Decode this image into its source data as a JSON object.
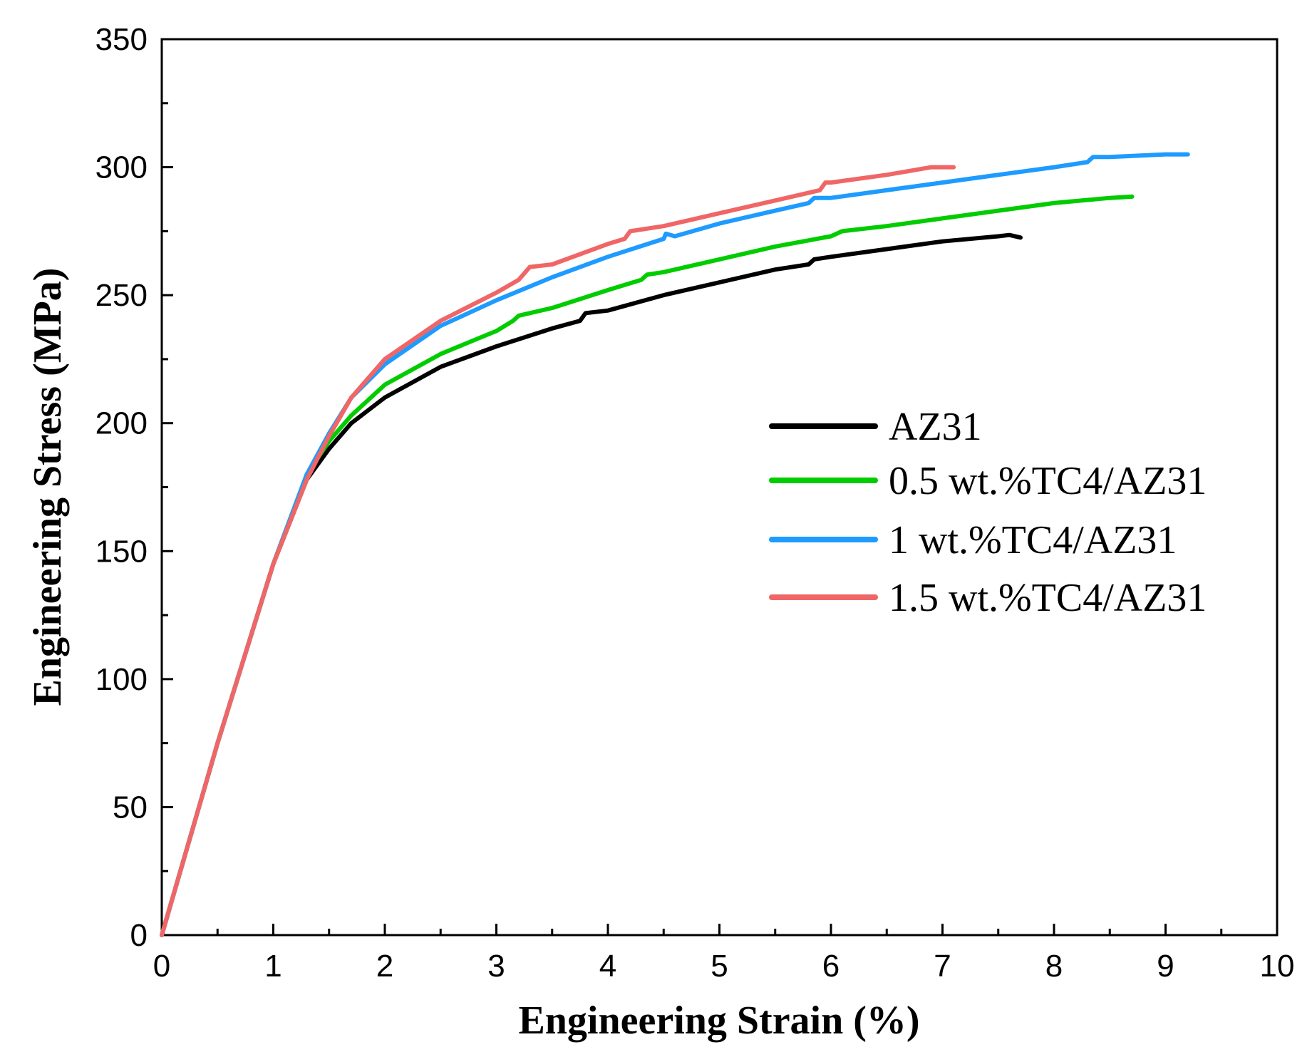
{
  "chart_data": {
    "type": "line",
    "title": "",
    "xlabel": "Engineering Strain (%)",
    "ylabel": "Engineering Stress (MPa)",
    "xlim": [
      0,
      10
    ],
    "ylim": [
      0,
      350
    ],
    "xticks": [
      0,
      1,
      2,
      3,
      4,
      5,
      6,
      7,
      8,
      9,
      10
    ],
    "yticks": [
      0,
      50,
      100,
      150,
      200,
      250,
      300,
      350
    ],
    "grid": false,
    "legend_position": "center-right",
    "series": [
      {
        "name": "AZ31",
        "color": "#000000",
        "points": [
          [
            0,
            0
          ],
          [
            0.5,
            75
          ],
          [
            1.0,
            145
          ],
          [
            1.3,
            178
          ],
          [
            1.5,
            190
          ],
          [
            1.7,
            200
          ],
          [
            2.0,
            210
          ],
          [
            2.5,
            222
          ],
          [
            3.0,
            230
          ],
          [
            3.5,
            237
          ],
          [
            3.75,
            240
          ],
          [
            3.8,
            243
          ],
          [
            4.0,
            244
          ],
          [
            4.5,
            250
          ],
          [
            5.0,
            255
          ],
          [
            5.5,
            260
          ],
          [
            5.8,
            262
          ],
          [
            5.85,
            264
          ],
          [
            6.0,
            265
          ],
          [
            6.5,
            268
          ],
          [
            7.0,
            271
          ],
          [
            7.5,
            273
          ],
          [
            7.6,
            273.5
          ],
          [
            7.7,
            272.5
          ]
        ]
      },
      {
        "name": "0.5 wt.%TC4/AZ31",
        "color": "#00cc00",
        "points": [
          [
            0,
            0
          ],
          [
            0.5,
            75
          ],
          [
            1.0,
            145
          ],
          [
            1.3,
            180
          ],
          [
            1.5,
            193
          ],
          [
            1.7,
            203
          ],
          [
            2.0,
            215
          ],
          [
            2.5,
            227
          ],
          [
            3.0,
            236
          ],
          [
            3.15,
            240
          ],
          [
            3.2,
            242
          ],
          [
            3.5,
            245
          ],
          [
            4.0,
            252
          ],
          [
            4.3,
            256
          ],
          [
            4.35,
            258
          ],
          [
            4.5,
            259
          ],
          [
            5.0,
            264
          ],
          [
            5.5,
            269
          ],
          [
            6.0,
            273
          ],
          [
            6.1,
            275
          ],
          [
            6.5,
            277
          ],
          [
            7.0,
            280
          ],
          [
            7.5,
            283
          ],
          [
            8.0,
            286
          ],
          [
            8.5,
            288
          ],
          [
            8.7,
            288.5
          ]
        ]
      },
      {
        "name": "1 wt.%TC4/AZ31",
        "color": "#1e9bff",
        "points": [
          [
            0,
            0
          ],
          [
            0.5,
            75
          ],
          [
            1.0,
            145
          ],
          [
            1.3,
            180
          ],
          [
            1.5,
            196
          ],
          [
            1.7,
            210
          ],
          [
            2.0,
            223
          ],
          [
            2.5,
            238
          ],
          [
            3.0,
            248
          ],
          [
            3.5,
            257
          ],
          [
            4.0,
            265
          ],
          [
            4.5,
            272
          ],
          [
            4.52,
            274
          ],
          [
            4.6,
            273
          ],
          [
            5.0,
            278
          ],
          [
            5.5,
            283
          ],
          [
            5.8,
            286
          ],
          [
            5.85,
            288
          ],
          [
            6.0,
            288
          ],
          [
            6.5,
            291
          ],
          [
            7.0,
            294
          ],
          [
            7.5,
            297
          ],
          [
            8.0,
            300
          ],
          [
            8.3,
            302
          ],
          [
            8.35,
            304
          ],
          [
            8.5,
            304
          ],
          [
            9.0,
            305
          ],
          [
            9.2,
            305
          ]
        ]
      },
      {
        "name": "1.5 wt.%TC4/AZ31",
        "color": "#f06666",
        "points": [
          [
            0,
            0
          ],
          [
            0.5,
            75
          ],
          [
            1.0,
            145
          ],
          [
            1.3,
            178
          ],
          [
            1.5,
            195
          ],
          [
            1.7,
            210
          ],
          [
            2.0,
            225
          ],
          [
            2.5,
            240
          ],
          [
            3.0,
            251
          ],
          [
            3.2,
            256
          ],
          [
            3.3,
            261
          ],
          [
            3.5,
            262
          ],
          [
            4.0,
            270
          ],
          [
            4.15,
            272
          ],
          [
            4.2,
            275
          ],
          [
            4.5,
            277
          ],
          [
            5.0,
            282
          ],
          [
            5.5,
            287
          ],
          [
            5.9,
            291
          ],
          [
            5.95,
            294
          ],
          [
            6.0,
            294
          ],
          [
            6.5,
            297
          ],
          [
            6.9,
            300
          ],
          [
            7.1,
            300
          ]
        ]
      }
    ]
  }
}
